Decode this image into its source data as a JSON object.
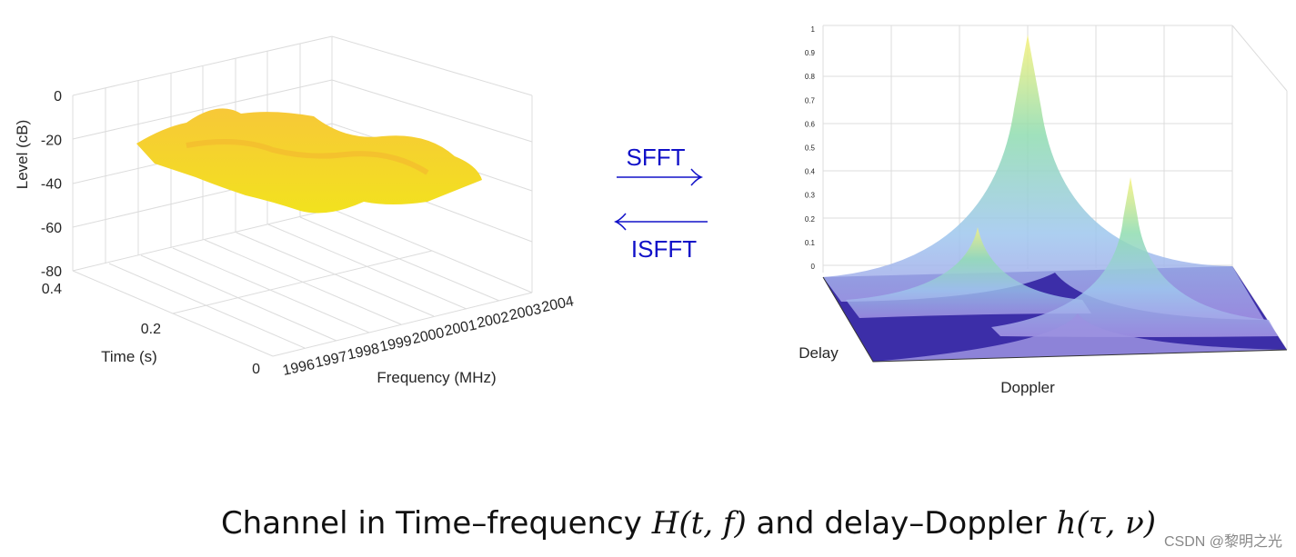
{
  "left_plot": {
    "z_label": "Level (cB)",
    "z_ticks": [
      "0",
      "-20",
      "-40",
      "-60",
      "-80"
    ],
    "time_label": "Time (s)",
    "time_ticks": [
      "0.4",
      "0.2",
      "0"
    ],
    "freq_label": "Frequency (MHz)",
    "freq_ticks": [
      "1996",
      "1997",
      "1998",
      "1999",
      "2000",
      "2001",
      "2002",
      "2003",
      "2004"
    ]
  },
  "arrows": {
    "forward": "SFFT",
    "backward": "ISFFT"
  },
  "right_plot": {
    "z_ticks": [
      "0",
      "0.1",
      "0.2",
      "0.3",
      "0.4",
      "0.5",
      "0.6",
      "0.7",
      "0.8",
      "0.9",
      "1"
    ],
    "delay_label": "Delay",
    "doppler_label": "Doppler"
  },
  "caption": {
    "part1": "Channel in Time–frequency",
    "part2": "H(t, f)",
    "part3": "and delay–Doppler",
    "part4": "h(τ, ν)"
  },
  "watermark": "CSDN @黎明之光"
}
